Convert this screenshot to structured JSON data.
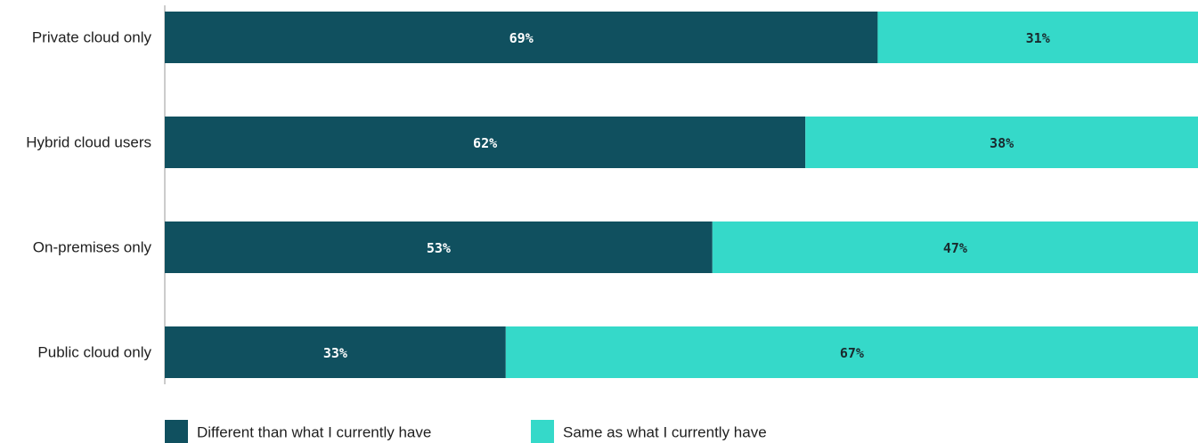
{
  "chart_data": {
    "type": "bar",
    "orientation": "horizontal",
    "stacked": true,
    "title": "",
    "xlabel": "",
    "ylabel": "",
    "xlim": [
      0,
      100
    ],
    "grid": false,
    "legend_position": "bottom-left",
    "categories": [
      "Private cloud only",
      "Hybrid cloud users",
      "On-premises only",
      "Public cloud only"
    ],
    "series": [
      {
        "name": "Different than what I currently have",
        "color": "#10505f",
        "label_color": "#ffffff",
        "values": [
          69,
          62,
          53,
          33
        ],
        "labels": [
          "69%",
          "62%",
          "53%",
          "33%"
        ]
      },
      {
        "name": "Same as what I currently have",
        "color": "#35d9c9",
        "label_color": "#1a2a2e",
        "values": [
          31,
          38,
          47,
          67
        ],
        "labels": [
          "31%",
          "38%",
          "47%",
          "67%"
        ]
      }
    ]
  }
}
